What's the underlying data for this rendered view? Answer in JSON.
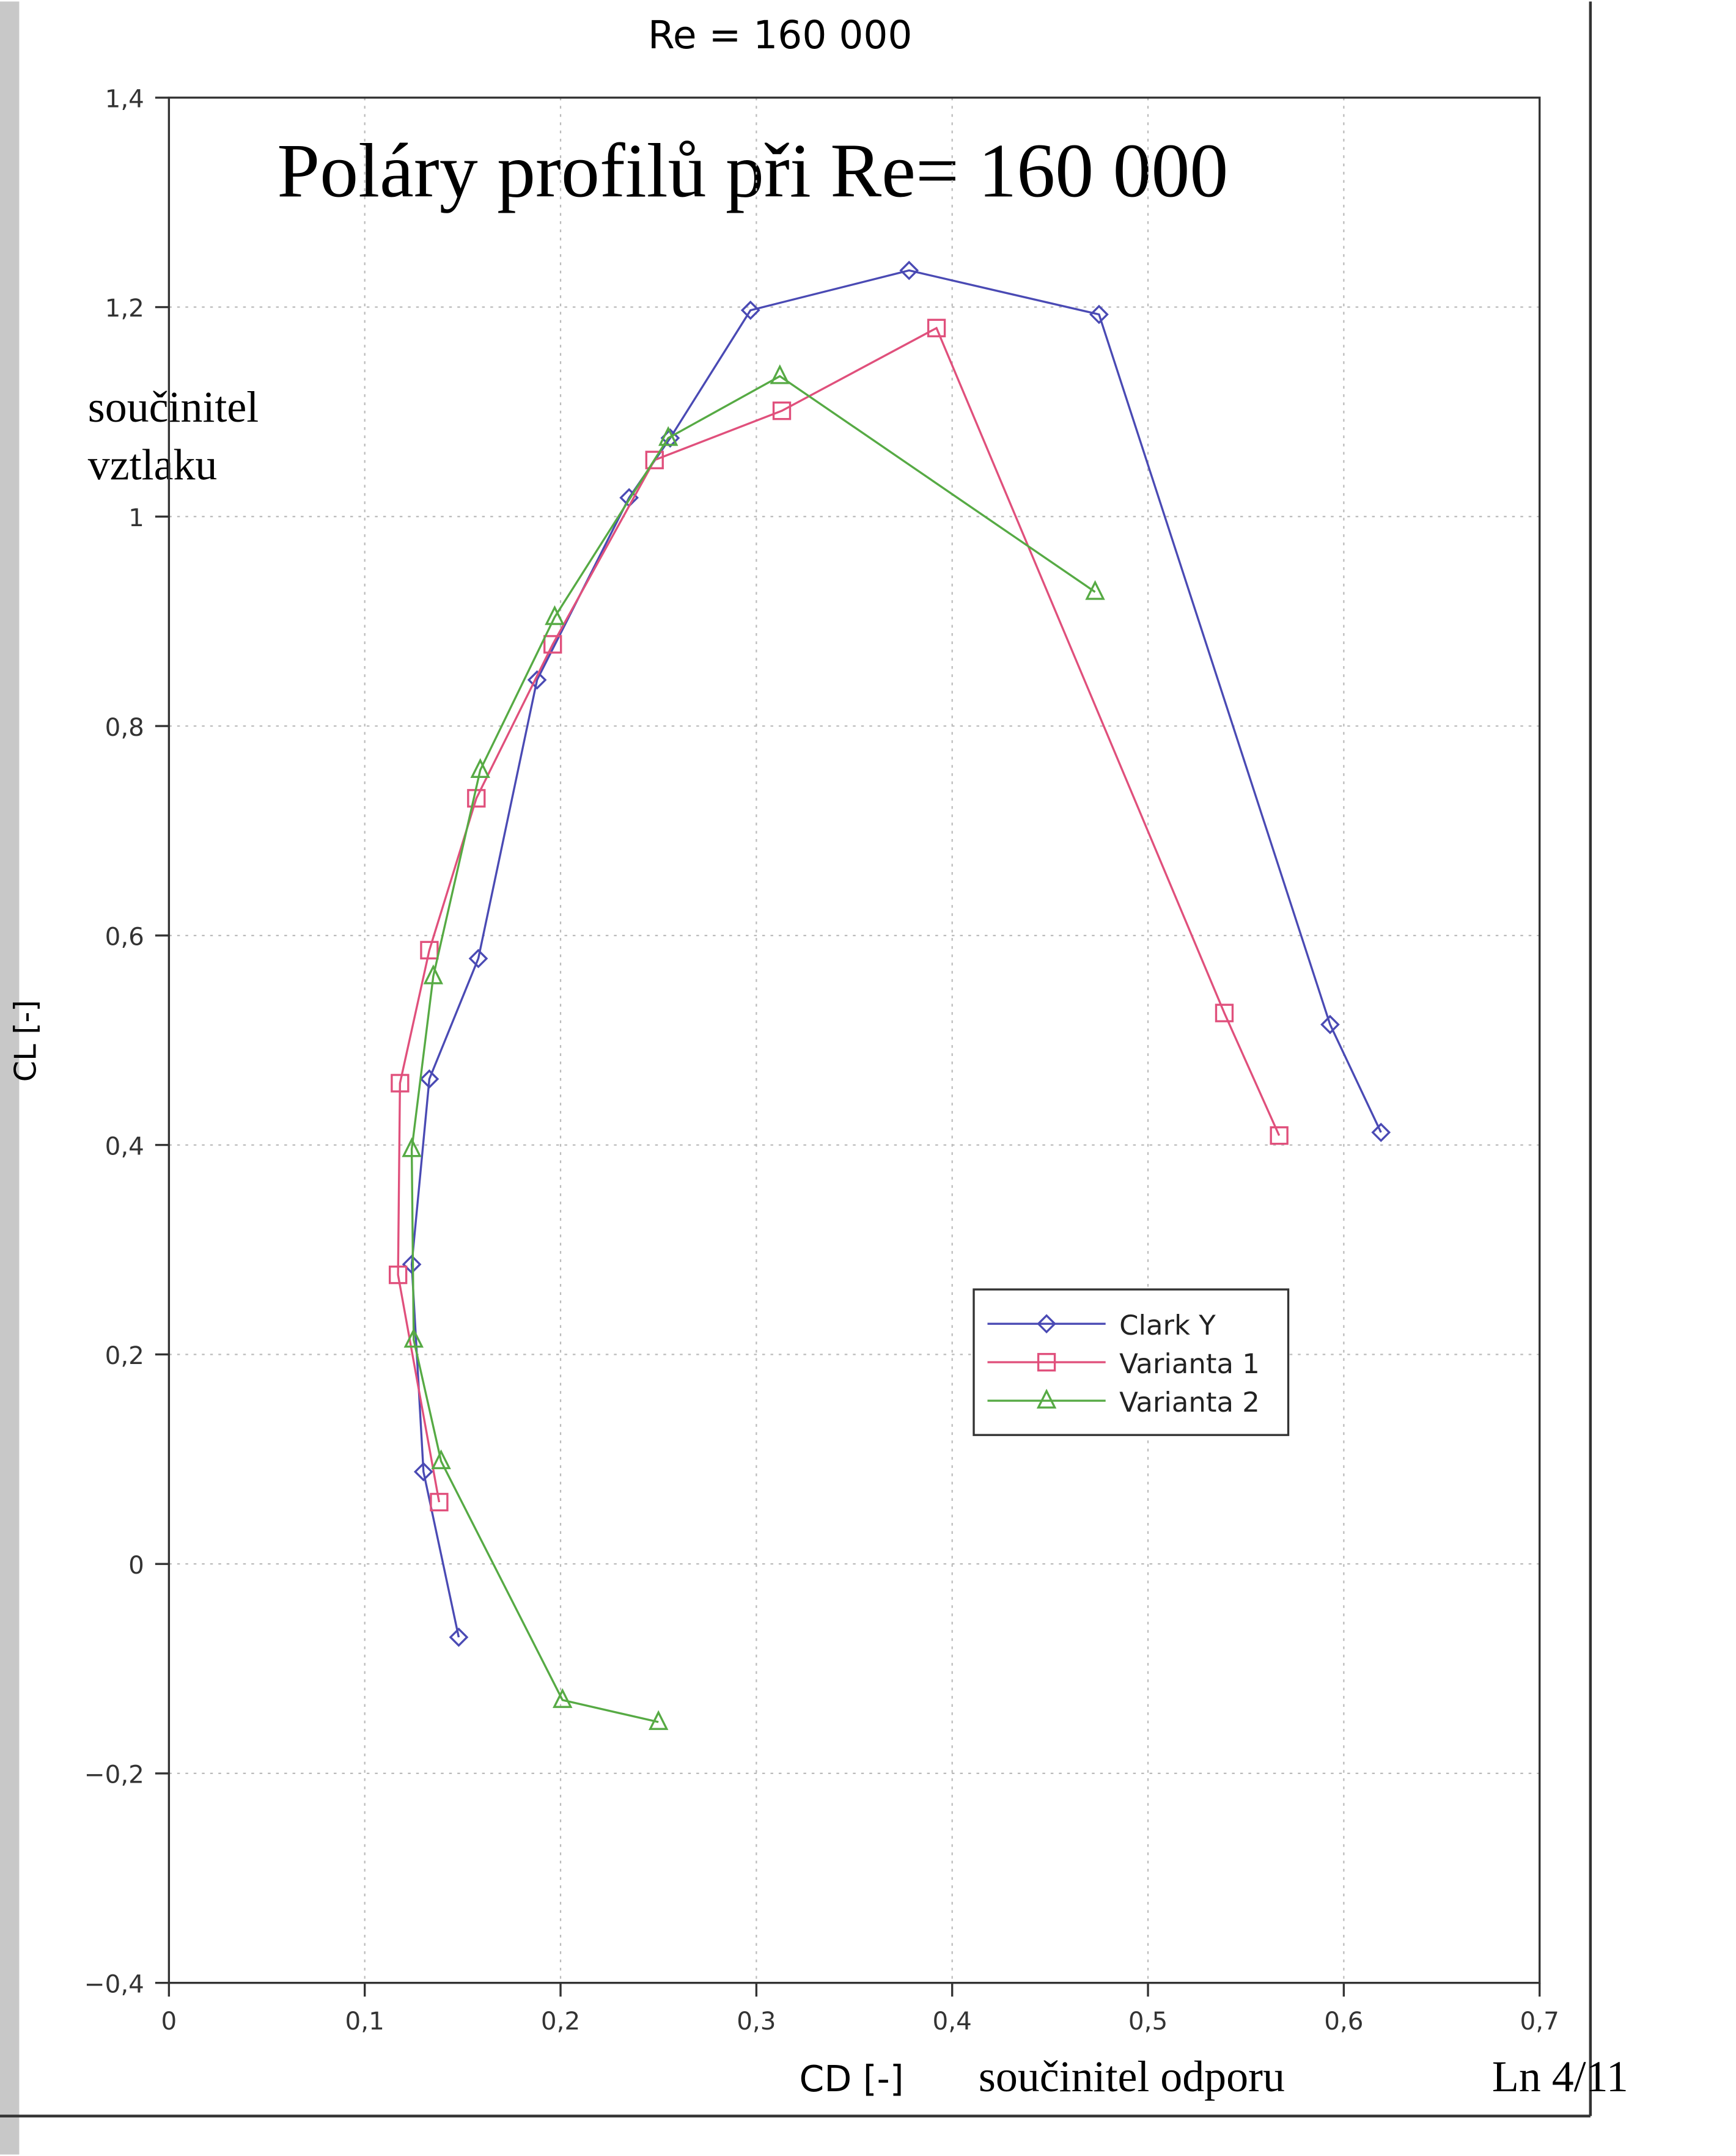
{
  "chart_data": {
    "type": "line",
    "title": "Re = 160 000",
    "heading": "Poláry profilů při Re= 160 000",
    "y_note": [
      "součinitel",
      "vztlaku"
    ],
    "ylabel": "CL [-]",
    "xlabel": "CD [-]",
    "x_note": "součinitel odporu",
    "page_number": "Ln 4/11",
    "xlim": [
      0,
      0.7
    ],
    "ylim": [
      -0.4,
      1.4
    ],
    "xticks": [
      0,
      {
        "value": 0.1,
        "label": "0,1"
      },
      {
        "value": 0.2,
        "label": "0,2"
      },
      {
        "value": 0.3,
        "label": "0,3"
      },
      {
        "value": 0.4,
        "label": "0,4"
      },
      {
        "value": 0.5,
        "label": "0,5"
      },
      {
        "value": 0.6,
        "label": "0,6"
      },
      {
        "value": 0.7,
        "label": "0,7"
      }
    ],
    "yticks": [
      {
        "value": -0.4,
        "label": "−0,4"
      },
      {
        "value": -0.2,
        "label": "−0,2"
      },
      0,
      {
        "value": 0.2,
        "label": "0,2"
      },
      {
        "value": 0.4,
        "label": "0,4"
      },
      {
        "value": 0.6,
        "label": "0,6"
      },
      {
        "value": 0.8,
        "label": "0,8"
      },
      1,
      {
        "value": 1.2,
        "label": "1,2"
      },
      {
        "value": 1.4,
        "label": "1,4"
      }
    ],
    "grid": true,
    "legend": "right",
    "series": [
      {
        "name": "Clark Y",
        "color": "#4a4ab4",
        "marker": "diamond",
        "x": [
          0.148,
          0.13,
          0.124,
          0.133,
          0.158,
          0.188,
          0.235,
          0.256,
          0.297,
          0.378,
          0.475,
          0.593,
          0.619
        ],
        "values": [
          -0.07,
          0.088,
          0.286,
          0.463,
          0.578,
          0.844,
          1.018,
          1.075,
          1.197,
          1.235,
          1.193,
          0.515,
          0.412
        ]
      },
      {
        "name": "Varianta 1",
        "color": "#e0507c",
        "marker": "square",
        "x": [
          0.138,
          0.117,
          0.118,
          0.133,
          0.157,
          0.196,
          0.248,
          0.313,
          0.392,
          0.539,
          0.567
        ],
        "values": [
          0.059,
          0.276,
          0.459,
          0.586,
          0.731,
          0.878,
          1.054,
          1.101,
          1.18,
          0.526,
          0.409
        ]
      },
      {
        "name": "Varianta 2",
        "color": "#56aa44",
        "marker": "triangle",
        "x": [
          0.25,
          0.201,
          0.139,
          0.125,
          0.124,
          0.135,
          0.159,
          0.197,
          0.255,
          0.312,
          0.473
        ],
        "values": [
          -0.151,
          -0.13,
          0.098,
          0.214,
          0.396,
          0.561,
          0.758,
          0.904,
          1.075,
          1.134,
          0.928
        ]
      }
    ]
  }
}
